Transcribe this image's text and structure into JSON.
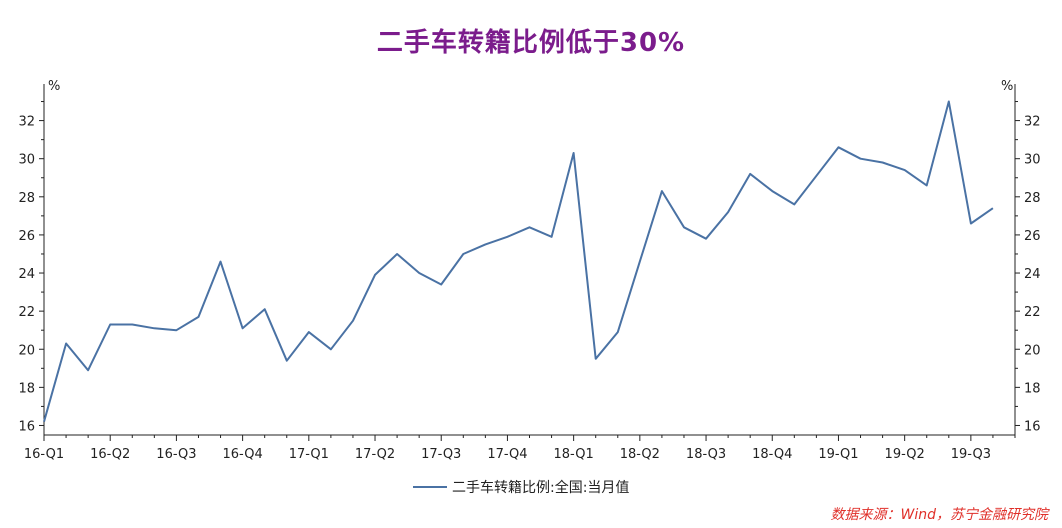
{
  "chart_data": {
    "type": "line",
    "title": "二手车转籍比例低于30%",
    "unit_left": "%",
    "unit_right": "%",
    "ylim": [
      15.5,
      33.5
    ],
    "yticks": [
      16,
      18,
      20,
      22,
      24,
      26,
      28,
      30,
      32
    ],
    "xlim": [
      0,
      44
    ],
    "x_tick_labels": [
      "16-Q1",
      "16-Q2",
      "16-Q3",
      "16-Q4",
      "17-Q1",
      "17-Q2",
      "17-Q3",
      "17-Q4",
      "18-Q1",
      "18-Q2",
      "18-Q3",
      "18-Q4",
      "19-Q1",
      "19-Q2",
      "19-Q3"
    ],
    "x_tick_positions": [
      0,
      3,
      6,
      9,
      12,
      15,
      18,
      21,
      24,
      27,
      30,
      33,
      36,
      39,
      42
    ],
    "series": [
      {
        "name": "二手车转籍比例:全国:当月值",
        "color": "#4a72a4",
        "x": [
          0,
          1,
          2,
          3,
          4,
          5,
          6,
          7,
          8,
          9,
          10,
          11,
          12,
          13,
          14,
          15,
          16,
          17,
          18,
          19,
          20,
          21,
          22,
          23,
          24,
          25,
          26,
          27,
          28,
          29,
          30,
          31,
          32,
          33,
          34,
          35,
          36,
          37,
          38,
          39,
          40,
          41,
          42,
          43
        ],
        "values": [
          16.2,
          20.3,
          18.9,
          21.3,
          21.3,
          21.1,
          21.0,
          21.7,
          24.6,
          21.1,
          22.1,
          19.4,
          20.9,
          20.0,
          21.5,
          23.9,
          25.0,
          24.0,
          23.4,
          25.0,
          25.5,
          25.9,
          26.4,
          25.9,
          30.3,
          19.5,
          20.9,
          24.6,
          28.3,
          26.4,
          25.8,
          27.2,
          29.2,
          28.3,
          27.6,
          29.1,
          30.6,
          30.0,
          29.8,
          29.4,
          28.6,
          33.0,
          26.6,
          27.4
        ]
      }
    ],
    "legend": "bottom-center",
    "grid": false
  },
  "source_note": "数据来源：Wind，苏宁金融研究院"
}
